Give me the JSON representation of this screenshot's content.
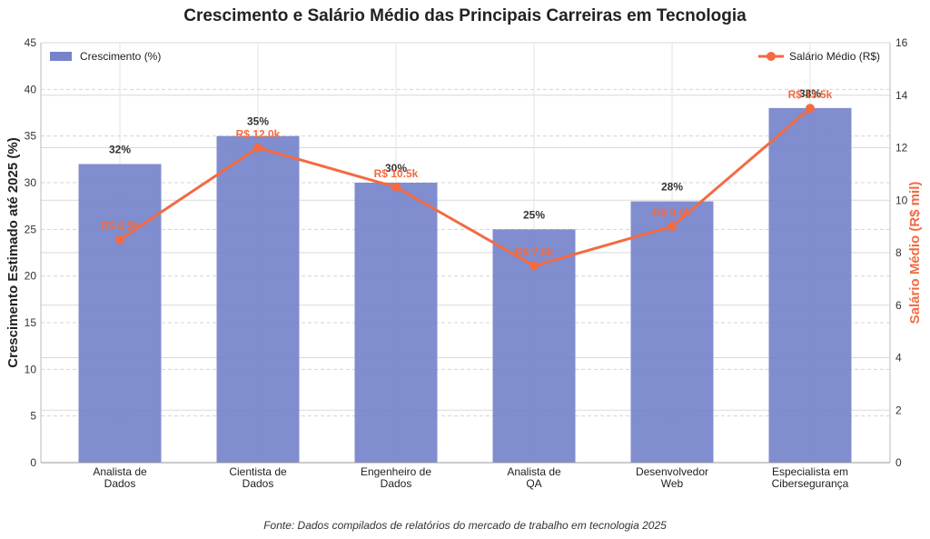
{
  "chart_data": {
    "type": "bar",
    "title": "Crescimento e Salário Médio das Principais Carreiras em Tecnologia",
    "categories": [
      [
        "Analista de",
        "Dados"
      ],
      [
        "Cientista de",
        "Dados"
      ],
      [
        "Engenheiro de",
        "Dados"
      ],
      [
        "Analista de",
        "QA"
      ],
      [
        "Desenvolvedor",
        "Web"
      ],
      [
        "Especialista em",
        "Cibersegurança"
      ]
    ],
    "series": [
      {
        "name": "Crescimento (%)",
        "type": "bar",
        "axis": "left",
        "color": "#7583cb",
        "values": [
          32,
          35,
          30,
          25,
          28,
          38
        ],
        "labels": [
          "32%",
          "35%",
          "30%",
          "25%",
          "28%",
          "38%"
        ]
      },
      {
        "name": "Salário Médio (R$)",
        "type": "line",
        "axis": "right",
        "color": "#f26b43",
        "values": [
          8.5,
          12.0,
          10.5,
          7.5,
          9.0,
          13.5
        ],
        "labels": [
          "R$ 8.5k",
          "R$ 12.0k",
          "R$ 10.5k",
          "R$ 7.5k",
          "R$ 9.0k",
          "R$ 13.5k"
        ]
      }
    ],
    "ylabel": "Crescimento Estimado até 2025 (%)",
    "ylim": [
      0,
      45
    ],
    "yticks": [
      0,
      5,
      10,
      15,
      20,
      25,
      30,
      35,
      40,
      45
    ],
    "y2label": "Salário Médio (R$ mil)",
    "y2lim": [
      0,
      16
    ],
    "y2ticks": [
      0,
      2,
      4,
      6,
      8,
      10,
      12,
      14,
      16
    ],
    "grid": true,
    "legend": [
      "top-left",
      "top-right"
    ],
    "footnote": "Fonte: Dados compilados de relatórios do mercado de trabalho em tecnologia 2025"
  }
}
